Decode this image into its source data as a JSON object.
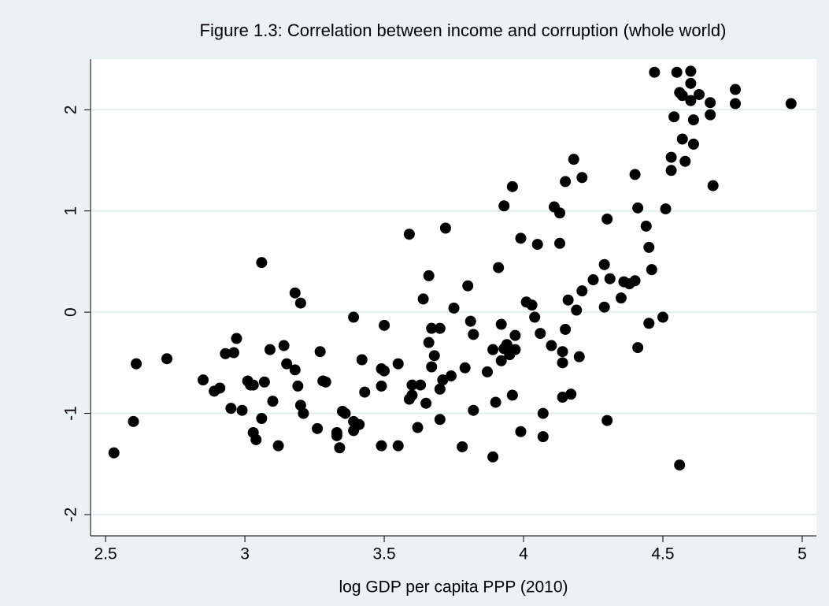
{
  "chart_data": {
    "type": "scatter",
    "title": "Figure 1.3: Correlation between income and corruption (whole world)",
    "x_label": "log GDP per capita PPP (2010)",
    "color": "#000000",
    "xlim": [
      2.446,
      5.051
    ],
    "ylim": [
      -2.21,
      2.5
    ],
    "xticks": [
      2.5,
      3,
      3.5,
      4,
      4.5,
      5
    ],
    "yticks": [
      -2,
      -1,
      0,
      1,
      2
    ],
    "grid": true,
    "x": [
      2.53,
      2.6,
      2.61,
      2.72,
      2.85,
      2.89,
      2.91,
      2.93,
      2.95,
      2.96,
      2.97,
      2.99,
      3.01,
      3.02,
      3.03,
      3.03,
      3.04,
      3.06,
      3.07,
      3.06,
      3.09,
      3.1,
      3.12,
      3.14,
      3.15,
      3.18,
      3.19,
      3.18,
      3.2,
      3.2,
      3.21,
      3.26,
      3.27,
      3.28,
      3.29,
      3.33,
      3.33,
      3.34,
      3.35,
      3.36,
      3.39,
      3.39,
      3.41,
      3.42,
      3.43,
      3.39,
      3.49,
      3.49,
      3.5,
      3.5,
      3.49,
      3.55,
      3.55,
      3.59,
      3.6,
      3.59,
      3.6,
      3.62,
      3.63,
      3.64,
      3.65,
      3.66,
      3.66,
      3.67,
      3.67,
      3.68,
      3.7,
      3.7,
      3.7,
      3.71,
      3.72,
      3.74,
      3.75,
      3.78,
      3.79,
      3.8,
      3.81,
      3.82,
      3.82,
      3.87,
      3.89,
      3.89,
      3.9,
      3.91,
      3.92,
      3.92,
      3.93,
      3.93,
      3.94,
      3.95,
      3.96,
      3.96,
      3.97,
      3.97,
      3.99,
      3.99,
      4.01,
      4.03,
      4.04,
      4.05,
      4.06,
      4.07,
      4.07,
      4.1,
      4.11,
      4.13,
      4.13,
      4.14,
      4.14,
      4.14,
      4.15,
      4.15,
      4.16,
      4.17,
      4.18,
      4.19,
      4.2,
      4.21,
      4.21,
      4.25,
      4.29,
      4.29,
      4.3,
      4.3,
      4.31,
      4.35,
      4.36,
      4.38,
      4.4,
      4.41,
      4.41,
      4.4,
      4.44,
      4.45,
      4.45,
      4.46,
      4.5,
      4.51,
      4.53,
      4.53,
      4.54,
      4.55,
      4.56,
      4.56,
      4.57,
      4.57,
      4.58,
      4.6,
      4.6,
      4.6,
      4.61,
      4.61,
      4.63,
      4.67,
      4.67,
      4.68,
      4.76,
      4.76,
      4.96,
      4.47
    ],
    "values": [
      -1.39,
      -1.08,
      -0.51,
      -0.46,
      -0.67,
      -0.78,
      -0.75,
      -0.41,
      -0.95,
      -0.4,
      -0.26,
      -0.97,
      -0.68,
      -0.72,
      -1.19,
      -0.72,
      -1.26,
      -1.05,
      -0.69,
      0.49,
      -0.37,
      -0.88,
      -1.32,
      -0.33,
      -0.51,
      -0.57,
      -0.73,
      0.19,
      0.09,
      -0.92,
      -1.0,
      -1.15,
      -0.39,
      -0.68,
      -0.69,
      -1.22,
      -1.19,
      -1.34,
      -0.98,
      -1.0,
      -1.08,
      -1.17,
      -1.11,
      -0.47,
      -0.79,
      -0.05,
      -0.56,
      -1.32,
      -0.58,
      -0.13,
      -0.73,
      -1.32,
      -0.51,
      -0.86,
      -0.82,
      0.77,
      -0.72,
      -1.14,
      -0.72,
      0.13,
      -0.9,
      -0.3,
      0.36,
      -0.16,
      -0.54,
      -0.43,
      -0.16,
      -1.06,
      -0.76,
      -0.67,
      0.83,
      -0.63,
      0.04,
      -1.33,
      -0.55,
      0.26,
      -0.09,
      -0.22,
      -0.97,
      -0.59,
      -1.43,
      -0.37,
      -0.89,
      0.44,
      -0.48,
      -0.12,
      -0.36,
      1.05,
      -0.32,
      -0.42,
      -0.82,
      1.24,
      -0.23,
      -0.37,
      -1.18,
      0.73,
      0.1,
      0.07,
      -0.05,
      0.67,
      -0.21,
      -1.23,
      -1.0,
      -0.33,
      1.04,
      0.68,
      0.98,
      -0.5,
      -0.39,
      -0.84,
      -0.17,
      1.29,
      0.12,
      -0.81,
      1.51,
      0.02,
      -0.44,
      0.21,
      1.33,
      0.32,
      0.05,
      0.47,
      -1.07,
      0.92,
      0.33,
      0.14,
      0.3,
      0.28,
      1.36,
      -0.35,
      1.03,
      0.31,
      0.85,
      -0.11,
      0.64,
      0.42,
      -0.05,
      1.02,
      1.4,
      1.53,
      1.93,
      2.37,
      2.17,
      -1.51,
      2.14,
      1.71,
      1.49,
      2.38,
      2.09,
      2.26,
      1.66,
      1.9,
      2.15,
      2.07,
      1.95,
      1.25,
      2.2,
      2.06,
      2.06,
      2.37
    ]
  }
}
